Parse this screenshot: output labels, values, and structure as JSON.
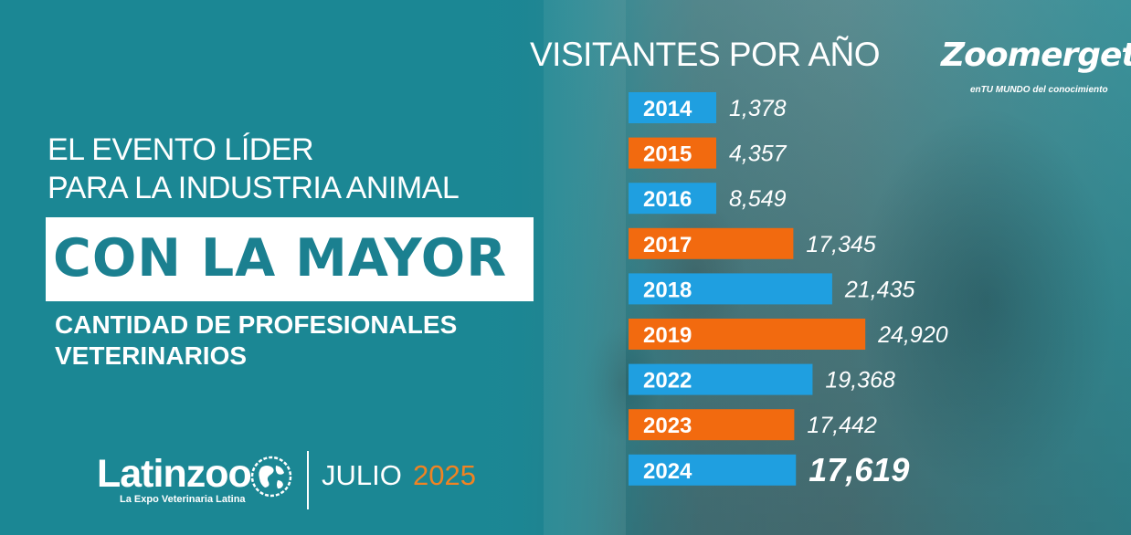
{
  "headline": {
    "line1": "EL EVENTO LÍDER",
    "line2": "PARA LA INDUSTRIA ANIMAL",
    "highlight": "CON LA MAYOR",
    "sub1": "CANTIDAD DE PROFESIONALES",
    "sub2": "VETERINARIOS"
  },
  "brand": {
    "name": "Latinzoo",
    "tagline": "La Expo Veterinaria Latina",
    "month": "JULIO",
    "year": "2025",
    "year_color": "#f08322"
  },
  "partner_logo": {
    "name": "Zoomergete",
    "tagline": "enTU MUNDO del conocimiento"
  },
  "colors": {
    "teal": "#1b8794",
    "blue": "#1f9fe0",
    "orange": "#f26a0f",
    "white": "#ffffff"
  },
  "chart_data": {
    "type": "bar",
    "orientation": "horizontal",
    "title": "VISITANTES POR AÑO",
    "categories": [
      "2014",
      "2015",
      "2016",
      "2017",
      "2018",
      "2019",
      "2022",
      "2023",
      "2024"
    ],
    "values": [
      1378,
      4357,
      8549,
      17345,
      21435,
      24920,
      19368,
      17442,
      17619
    ],
    "value_labels": [
      "1,378",
      "4,357",
      "8,549",
      "17,345",
      "21,435",
      "24,920",
      "19,368",
      "17,442",
      "17,619"
    ],
    "bar_colors": [
      "#1f9fe0",
      "#f26a0f",
      "#1f9fe0",
      "#f26a0f",
      "#1f9fe0",
      "#f26a0f",
      "#1f9fe0",
      "#f26a0f",
      "#1f9fe0"
    ],
    "emphasized_category": "2024",
    "grid": false,
    "legend": "none"
  }
}
